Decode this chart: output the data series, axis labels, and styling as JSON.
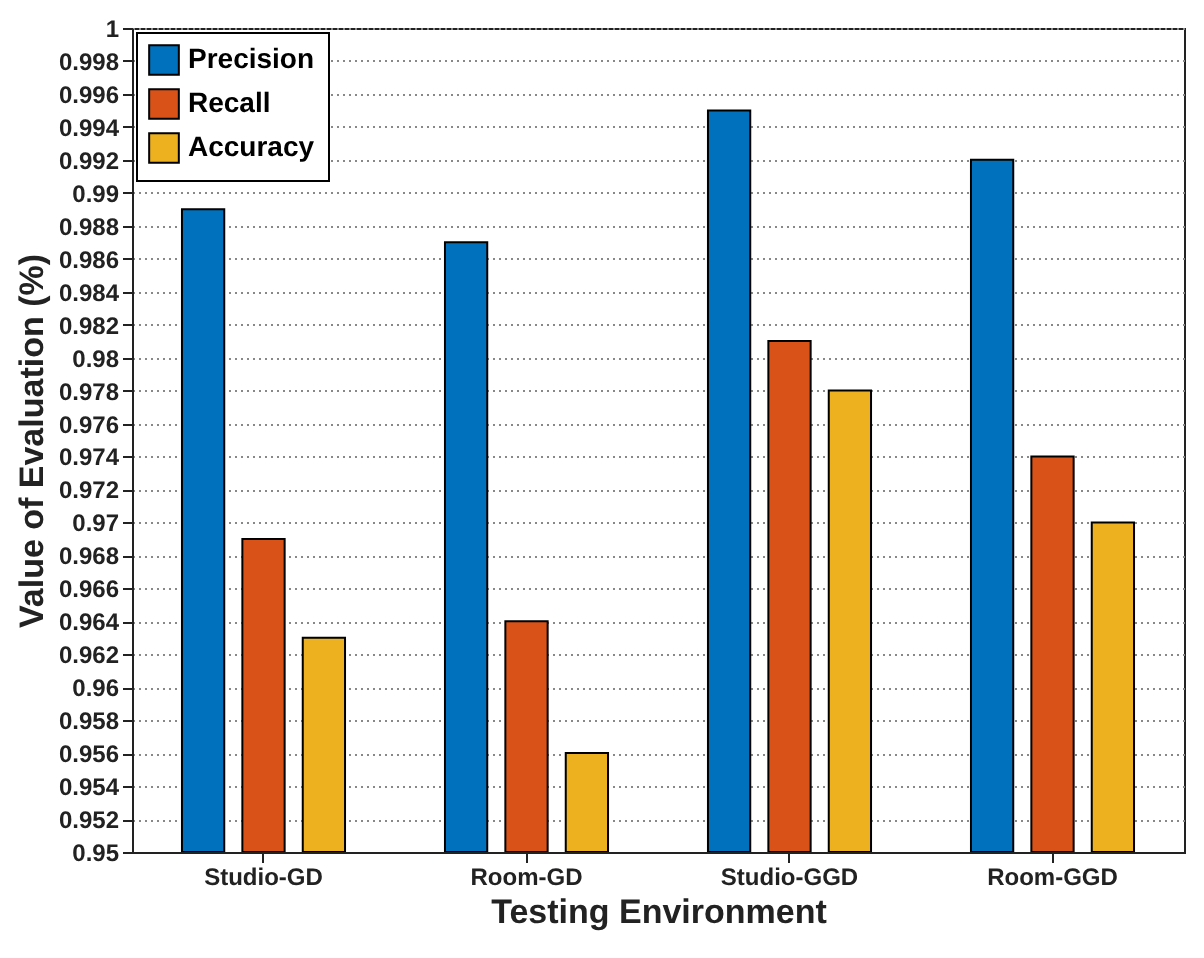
{
  "chart_data": {
    "type": "bar",
    "xlabel": "Testing Environment",
    "ylabel": "Value of Evaluation (%)",
    "categories": [
      "Studio-GD",
      "Room-GD",
      "Studio-GGD",
      "Room-GGD"
    ],
    "series": [
      {
        "name": "Precision",
        "color": "#0072bd",
        "values": [
          0.989,
          0.987,
          0.995,
          0.992
        ]
      },
      {
        "name": "Recall",
        "color": "#d95319",
        "values": [
          0.969,
          0.964,
          0.981,
          0.974
        ]
      },
      {
        "name": "Accuracy",
        "color": "#edb120",
        "values": [
          0.963,
          0.956,
          0.978,
          0.97
        ]
      }
    ],
    "ylim": [
      0.95,
      1
    ],
    "yticks": [
      0.95,
      0.952,
      0.954,
      0.956,
      0.958,
      0.96,
      0.962,
      0.964,
      0.966,
      0.968,
      0.97,
      0.972,
      0.974,
      0.976,
      0.978,
      0.98,
      0.982,
      0.984,
      0.986,
      0.988,
      0.99,
      0.992,
      0.994,
      0.996,
      0.998,
      1
    ],
    "grid": true,
    "legend": "top left"
  }
}
